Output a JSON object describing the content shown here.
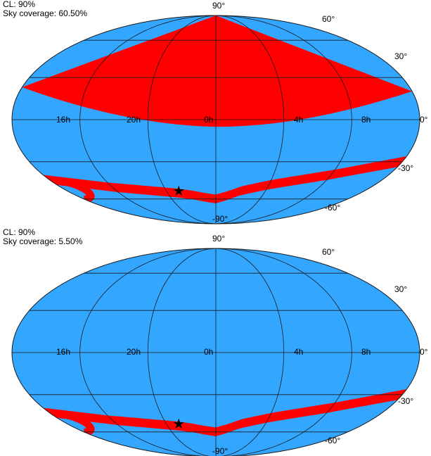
{
  "colors": {
    "background_region": "#33a6ff",
    "credible_region": "#ff0000",
    "grid": "#1a1a1a",
    "marker": "#000000"
  },
  "panels": [
    {
      "info": {
        "cl": "CL: 90%",
        "coverage": "Sky coverage: 60.50%"
      },
      "shows_northern_cap": true,
      "cap_edge_dec_at_ra0": -5,
      "cap_edge_dec_at_ra12": 20,
      "marker": {
        "ra_hours": -3,
        "dec_deg": -53,
        "icon": "star-marker-icon"
      }
    },
    {
      "info": {
        "cl": "CL: 90%",
        "coverage": "Sky coverage: 5.50%"
      },
      "shows_northern_cap": false,
      "marker": {
        "ra_hours": -3,
        "dec_deg": -53,
        "icon": "star-marker-icon"
      }
    }
  ],
  "ra_labels": [
    "16h",
    "20h",
    "0h",
    "4h",
    "8h"
  ],
  "ra_label_hours": [
    -8,
    -4,
    0,
    4,
    8
  ],
  "dec_labels": {
    "north_pole": "90°",
    "south_pole": "-90°",
    "n60": "60°",
    "n30": "30°",
    "eq": "0°",
    "s30": "-30°",
    "s60": "-60°"
  },
  "band": {
    "description_points_ra_dec": [
      [
        -12,
        -44
      ],
      [
        -10,
        -47
      ],
      [
        -8,
        -50
      ],
      [
        -6,
        -52
      ],
      [
        -4,
        -54
      ],
      [
        -3,
        -55
      ],
      [
        -2,
        -56.5
      ],
      [
        -1,
        -58.5
      ],
      [
        0,
        -60
      ],
      [
        1,
        -57
      ],
      [
        2,
        -53
      ],
      [
        4,
        -48
      ],
      [
        6,
        -44
      ],
      [
        8,
        -40
      ],
      [
        10,
        -35
      ],
      [
        12,
        -30
      ]
    ],
    "width_deg": 4
  }
}
